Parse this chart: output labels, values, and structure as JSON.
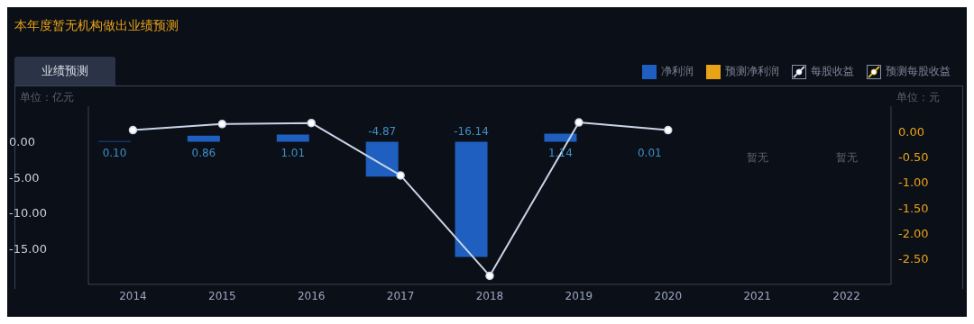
{
  "chart_data": {
    "type": "bar",
    "title": "本年度暂无机构做出业绩预测",
    "subtitle": "业绩预测",
    "ylabel": "单位：亿元",
    "y2label": "单位：元",
    "categories": [
      "2014",
      "2015",
      "2016",
      "2017",
      "2018",
      "2019",
      "2020",
      "2021",
      "2022"
    ],
    "series": [
      {
        "name": "净利润",
        "color": "#1f5fbf",
        "values": [
          0.1,
          0.86,
          1.01,
          -4.87,
          -16.14,
          1.14,
          0.01,
          null,
          null
        ],
        "value_labels": [
          "0.10",
          "0.86",
          "1.01",
          "-4.87",
          "-16.14",
          "1.14",
          "0.01",
          null,
          null
        ]
      },
      {
        "name": "预测净利润",
        "color": "#e8a317",
        "values": [
          null,
          null,
          null,
          null,
          null,
          null,
          null,
          null,
          null
        ]
      },
      {
        "name": "每股收益",
        "type": "line",
        "axis": "y2",
        "color": "#c8d4e8",
        "values": [
          0.03,
          0.15,
          0.17,
          -0.86,
          -2.83,
          0.18,
          0.03,
          null,
          null
        ]
      },
      {
        "name": "预测每股收益",
        "type": "line",
        "axis": "y2",
        "color": "#e0b030",
        "values": [
          null,
          null,
          null,
          null,
          null,
          null,
          null,
          null,
          null
        ]
      }
    ],
    "ylim": [
      -20,
      5
    ],
    "yticks": [
      {
        "value": 0,
        "label": "0.00"
      },
      {
        "value": -5,
        "label": "-5.00"
      },
      {
        "value": -10,
        "label": "-10.00"
      },
      {
        "value": -15,
        "label": "-15.00"
      }
    ],
    "y2lim": [
      -3,
      0.5
    ],
    "y2ticks": [
      {
        "value": 0,
        "label": "0.00"
      },
      {
        "value": -0.5,
        "label": "-0.50"
      },
      {
        "value": -1,
        "label": "-1.00"
      },
      {
        "value": -1.5,
        "label": "-1.50"
      },
      {
        "value": -2,
        "label": "-2.00"
      },
      {
        "value": -2.5,
        "label": "-2.50"
      }
    ],
    "annotations": [
      "暂无",
      "暂无"
    ],
    "legend": "top right",
    "marker": "circle",
    "line_style": "solid"
  }
}
